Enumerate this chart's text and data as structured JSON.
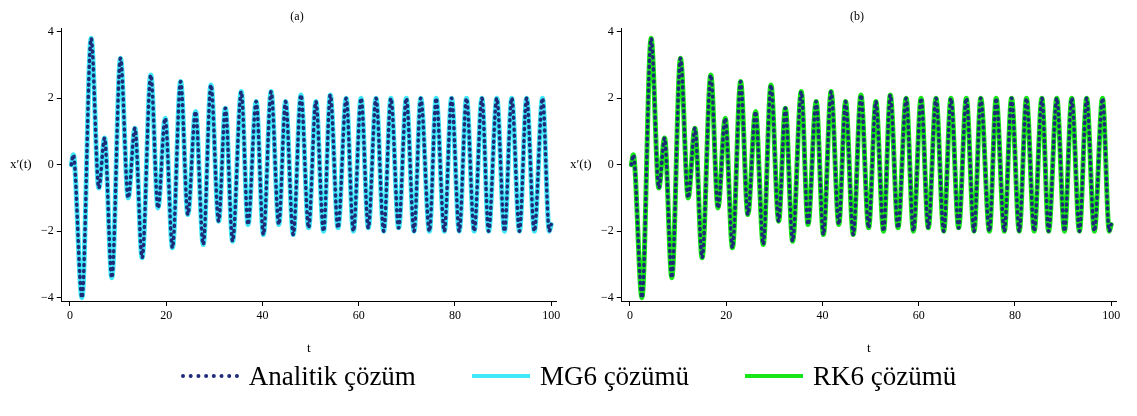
{
  "chart_data": [
    {
      "type": "line",
      "title": "(a)",
      "xlabel": "t",
      "ylabel": "x′(t)",
      "xlim": [
        -1.7,
        101
      ],
      "ylim": [
        -4.1,
        4.1
      ],
      "xticks": [
        0,
        20,
        40,
        60,
        80,
        100
      ],
      "yticks": [
        -4,
        -2,
        0,
        2,
        4
      ],
      "grid": false,
      "legend": "bottom",
      "marker": "none",
      "series": [
        {
          "name": "Analitik çözüm",
          "color": "#1f2a78",
          "line_style": "dotted",
          "x": [
            0.3,
            0.7,
            2.5,
            4.4,
            6.0,
            7.2,
            8.7,
            10.5,
            12.1,
            13.5,
            15.0,
            16.8,
            18.3,
            19.8,
            21.3,
            23.0,
            24.5,
            26.1,
            27.7,
            29.3,
            30.9,
            32.3,
            33.8,
            35.6,
            37.0,
            38.7,
            40.2,
            41.8,
            43.4,
            44.8,
            46.4,
            48.0,
            49.6,
            51.1,
            52.7,
            54.1,
            55.7,
            57.4,
            58.9,
            60.5,
            62.0,
            63.6,
            65.2,
            66.7,
            68.3,
            69.9,
            71.5,
            72.9,
            74.7,
            76.1,
            77.8,
            79.3,
            80.9,
            82.4,
            84.0,
            85.6,
            87.0,
            88.7,
            90.3,
            91.8,
            93.4,
            94.9,
            96.5,
            98.2,
            99.6,
            100
          ],
          "values": [
            0,
            0.3,
            -4.0,
            3.8,
            -0.7,
            0.8,
            -3.4,
            3.2,
            -1.0,
            1.1,
            -2.8,
            2.7,
            -1.3,
            1.4,
            -2.5,
            2.5,
            -1.5,
            1.6,
            -2.4,
            2.4,
            -1.7,
            1.7,
            -2.3,
            2.2,
            -1.8,
            1.9,
            -2.1,
            2.2,
            -1.8,
            1.9,
            -2.1,
            2.1,
            -1.9,
            1.9,
            -2.0,
            2.1,
            -1.9,
            2.0,
            -2.0,
            2.0,
            -1.9,
            2.0,
            -2.0,
            2.0,
            -1.9,
            2.0,
            -2.0,
            2.0,
            -2.0,
            2.0,
            -2.0,
            2.0,
            -2.0,
            2.0,
            -2.0,
            2.0,
            -2.0,
            2.0,
            -2.0,
            2.0,
            -2.0,
            2.0,
            -2.0,
            2.0,
            -2.0,
            -1.8
          ]
        },
        {
          "name": "MG6 çözümü",
          "color": "#40e8f8",
          "line_style": "solid",
          "x": [
            0.3,
            0.7,
            2.5,
            4.4,
            6.0,
            7.2,
            8.7,
            10.5,
            12.1,
            13.5,
            15.0,
            16.8,
            18.3,
            19.8,
            21.3,
            23.0,
            24.5,
            26.1,
            27.7,
            29.3,
            30.9,
            32.3,
            33.8,
            35.6,
            37.0,
            38.7,
            40.2,
            41.8,
            43.4,
            44.8,
            46.4,
            48.0,
            49.6,
            51.1,
            52.7,
            54.1,
            55.7,
            57.4,
            58.9,
            60.5,
            62.0,
            63.6,
            65.2,
            66.7,
            68.3,
            69.9,
            71.5,
            72.9,
            74.7,
            76.1,
            77.8,
            79.3,
            80.9,
            82.4,
            84.0,
            85.6,
            87.0,
            88.7,
            90.3,
            91.8,
            93.4,
            94.9,
            96.5,
            98.2,
            99.6,
            100
          ],
          "values": [
            0,
            0.3,
            -4.0,
            3.8,
            -0.7,
            0.8,
            -3.4,
            3.2,
            -1.0,
            1.1,
            -2.8,
            2.7,
            -1.3,
            1.4,
            -2.5,
            2.5,
            -1.5,
            1.6,
            -2.4,
            2.4,
            -1.7,
            1.7,
            -2.3,
            2.2,
            -1.8,
            1.9,
            -2.1,
            2.2,
            -1.8,
            1.9,
            -2.1,
            2.1,
            -1.9,
            1.9,
            -2.0,
            2.1,
            -1.9,
            2.0,
            -2.0,
            2.0,
            -1.9,
            2.0,
            -2.0,
            2.0,
            -1.9,
            2.0,
            -2.0,
            2.0,
            -2.0,
            2.0,
            -2.0,
            2.0,
            -2.0,
            2.0,
            -2.0,
            2.0,
            -2.0,
            2.0,
            -2.0,
            2.0,
            -2.0,
            2.0,
            -2.0,
            2.0,
            -2.0,
            -1.8
          ]
        }
      ]
    },
    {
      "type": "line",
      "title": "(b)",
      "xlabel": "t",
      "ylabel": "x′(t)",
      "xlim": [
        -1.7,
        101
      ],
      "ylim": [
        -4.1,
        4.1
      ],
      "xticks": [
        0,
        20,
        40,
        60,
        80,
        100
      ],
      "yticks": [
        -4,
        -2,
        0,
        2,
        4
      ],
      "grid": false,
      "legend": "bottom",
      "marker": "none",
      "series": [
        {
          "name": "Analitik çözüm",
          "color": "#1f2a78",
          "line_style": "dotted",
          "x": [
            0.3,
            0.7,
            2.5,
            4.4,
            6.0,
            7.2,
            8.7,
            10.5,
            12.1,
            13.5,
            15.0,
            16.8,
            18.3,
            19.8,
            21.3,
            23.0,
            24.5,
            26.1,
            27.7,
            29.3,
            30.9,
            32.3,
            33.8,
            35.6,
            37.0,
            38.7,
            40.2,
            41.8,
            43.4,
            44.8,
            46.4,
            48.0,
            49.6,
            51.1,
            52.7,
            54.1,
            55.7,
            57.4,
            58.9,
            60.5,
            62.0,
            63.6,
            65.2,
            66.7,
            68.3,
            69.9,
            71.5,
            72.9,
            74.7,
            76.1,
            77.8,
            79.3,
            80.9,
            82.4,
            84.0,
            85.6,
            87.0,
            88.7,
            90.3,
            91.8,
            93.4,
            94.9,
            96.5,
            98.2,
            99.6,
            100
          ],
          "values": [
            0,
            0.3,
            -4.0,
            3.8,
            -0.7,
            0.8,
            -3.4,
            3.2,
            -1.0,
            1.1,
            -2.8,
            2.7,
            -1.3,
            1.4,
            -2.5,
            2.5,
            -1.5,
            1.6,
            -2.4,
            2.4,
            -1.7,
            1.7,
            -2.3,
            2.2,
            -1.8,
            1.9,
            -2.1,
            2.2,
            -1.8,
            1.9,
            -2.1,
            2.1,
            -1.9,
            1.9,
            -2.0,
            2.1,
            -1.9,
            2.0,
            -2.0,
            2.0,
            -1.9,
            2.0,
            -2.0,
            2.0,
            -1.9,
            2.0,
            -2.0,
            2.0,
            -2.0,
            2.0,
            -2.0,
            2.0,
            -2.0,
            2.0,
            -2.0,
            2.0,
            -2.0,
            2.0,
            -2.0,
            2.0,
            -2.0,
            2.0,
            -2.0,
            2.0,
            -2.0,
            -1.8
          ]
        },
        {
          "name": "RK6 çözümü",
          "color": "#19e619",
          "line_style": "solid",
          "x": [
            0.3,
            0.7,
            2.5,
            4.4,
            6.0,
            7.2,
            8.7,
            10.5,
            12.1,
            13.5,
            15.0,
            16.8,
            18.3,
            19.8,
            21.3,
            23.0,
            24.5,
            26.1,
            27.7,
            29.3,
            30.9,
            32.3,
            33.8,
            35.6,
            37.0,
            38.7,
            40.2,
            41.8,
            43.4,
            44.8,
            46.4,
            48.0,
            49.6,
            51.1,
            52.7,
            54.1,
            55.7,
            57.4,
            58.9,
            60.5,
            62.0,
            63.6,
            65.2,
            66.7,
            68.3,
            69.9,
            71.5,
            72.9,
            74.7,
            76.1,
            77.8,
            79.3,
            80.9,
            82.4,
            84.0,
            85.6,
            87.0,
            88.7,
            90.3,
            91.8,
            93.4,
            94.9,
            96.5,
            98.2,
            99.6,
            100
          ],
          "values": [
            0,
            0.3,
            -4.0,
            3.8,
            -0.7,
            0.8,
            -3.4,
            3.2,
            -1.0,
            1.1,
            -2.8,
            2.7,
            -1.3,
            1.4,
            -2.5,
            2.5,
            -1.5,
            1.6,
            -2.4,
            2.4,
            -1.7,
            1.7,
            -2.3,
            2.2,
            -1.8,
            1.9,
            -2.1,
            2.2,
            -1.8,
            1.9,
            -2.1,
            2.1,
            -1.9,
            1.9,
            -2.0,
            2.1,
            -1.9,
            2.0,
            -2.0,
            2.0,
            -1.9,
            2.0,
            -2.0,
            2.0,
            -1.9,
            2.0,
            -2.0,
            2.0,
            -2.0,
            2.0,
            -2.0,
            2.0,
            -2.0,
            2.0,
            -2.0,
            2.0,
            -2.0,
            2.0,
            -2.0,
            2.0,
            -2.0,
            2.0,
            -2.0,
            2.0,
            -2.0,
            -1.8
          ]
        }
      ]
    }
  ]
}
